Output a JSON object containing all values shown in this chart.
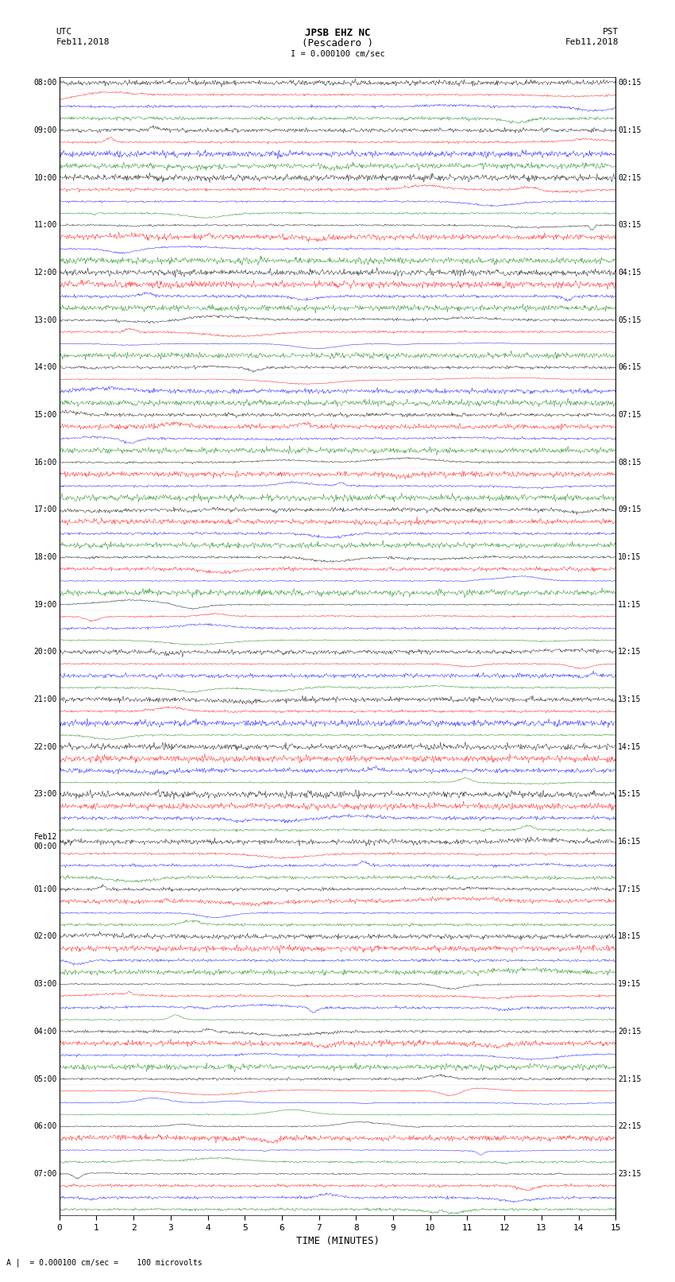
{
  "title_line1": "JPSB EHZ NC",
  "title_line2": "(Pescadero )",
  "scale_text": "I = 0.000100 cm/sec",
  "left_label_top": "UTC",
  "left_label_date": "Feb11,2018",
  "right_label_top": "PST",
  "right_label_date": "Feb11,2018",
  "bottom_label": "TIME (MINUTES)",
  "bottom_note": "A |  = 0.000100 cm/sec =    100 microvolts",
  "utc_times_major": {
    "0": "08:00",
    "4": "09:00",
    "8": "10:00",
    "12": "11:00",
    "16": "12:00",
    "20": "13:00",
    "24": "14:00",
    "28": "15:00",
    "32": "16:00",
    "36": "17:00",
    "40": "18:00",
    "44": "19:00",
    "48": "20:00",
    "52": "21:00",
    "56": "22:00",
    "60": "23:00",
    "64": "Feb12\n00:00",
    "68": "01:00",
    "72": "02:00",
    "76": "03:00",
    "80": "04:00",
    "84": "05:00",
    "88": "06:00",
    "92": "07:00"
  },
  "pst_times_major": {
    "0": "00:15",
    "4": "01:15",
    "8": "02:15",
    "12": "03:15",
    "16": "04:15",
    "20": "05:15",
    "24": "06:15",
    "28": "07:15",
    "32": "08:15",
    "36": "09:15",
    "40": "10:15",
    "44": "11:15",
    "48": "12:15",
    "52": "13:15",
    "56": "14:15",
    "60": "15:15",
    "64": "16:15",
    "68": "17:15",
    "72": "18:15",
    "76": "19:15",
    "80": "20:15",
    "84": "21:15",
    "88": "22:15",
    "92": "23:15"
  },
  "num_rows": 96,
  "minutes_per_row": 15,
  "colors_cycle": [
    "black",
    "red",
    "blue",
    "green"
  ],
  "bg_color": "white",
  "fig_width": 8.5,
  "fig_height": 16.13,
  "dpi": 100,
  "noise_amplitude": 0.28,
  "event_amplitude": 1.2
}
